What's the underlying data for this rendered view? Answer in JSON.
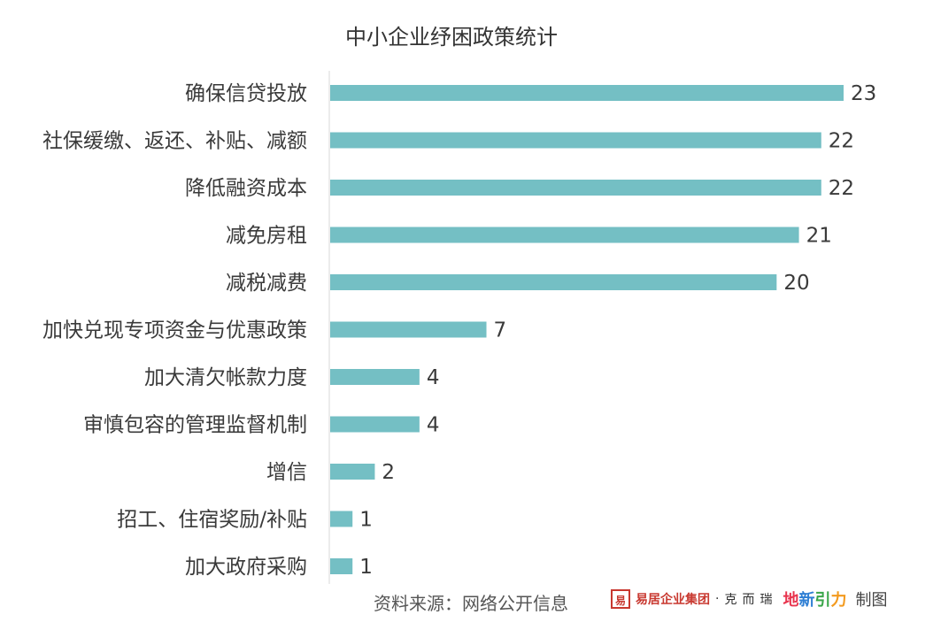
{
  "chart_data": {
    "type": "bar",
    "orientation": "horizontal",
    "title": "中小企业纾困政策统计",
    "categories": [
      "确保信贷投放",
      "社保缓缴、返还、补贴、减额",
      "降低融资成本",
      "减免房租",
      "减税减费",
      "加快兑现专项资金与优惠政策",
      "加大清欠帐款力度",
      "审慎包容的管理监督机制",
      "增信",
      "招工、住宿奖励/补贴",
      "加大政府采购"
    ],
    "values": [
      23,
      22,
      22,
      21,
      20,
      7,
      4,
      4,
      2,
      1,
      1
    ],
    "xlim": [
      0,
      23
    ],
    "bar_color": "#74bfc4",
    "grid": false,
    "legend": "none"
  },
  "footer": {
    "source": "资料来源：网络公开信息",
    "brand_logo": "易",
    "brand_name": "易居企业集团",
    "brand_sep": "·",
    "brand_partner": "克而瑞",
    "brand_xin": [
      "地",
      "新",
      "引",
      "力"
    ],
    "brand_suffix": "制图"
  }
}
